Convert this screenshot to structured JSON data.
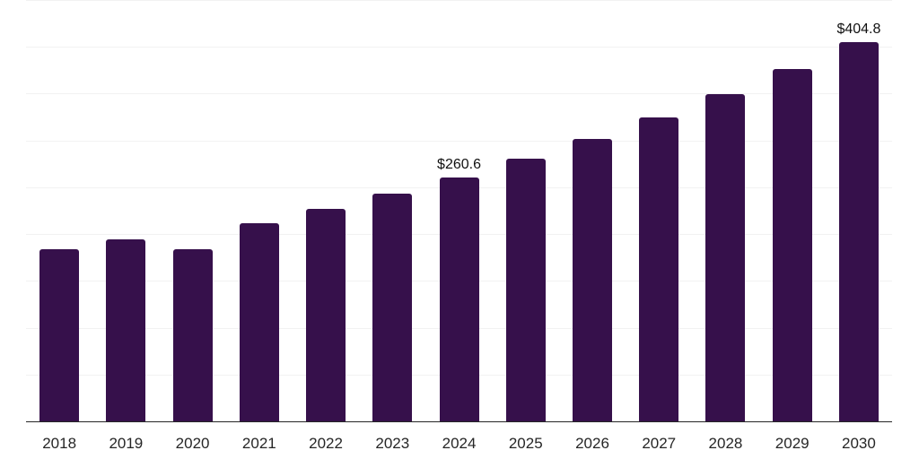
{
  "chart_data": {
    "type": "bar",
    "title": "",
    "xlabel": "",
    "ylabel": "",
    "categories": [
      "2018",
      "2019",
      "2020",
      "2021",
      "2022",
      "2023",
      "2024",
      "2025",
      "2026",
      "2027",
      "2028",
      "2029",
      "2030"
    ],
    "values": [
      183.6,
      194.1,
      184.0,
      212.0,
      227.0,
      243.2,
      260.6,
      280.4,
      301.8,
      324.8,
      349.5,
      376.2,
      404.8
    ],
    "data_labels": {
      "2024": "$260.6",
      "2030": "$404.8"
    },
    "ylim": [
      0,
      450
    ],
    "grid_step": 50,
    "grid": true,
    "legend": false,
    "colors": {
      "bar": "#36104b",
      "grid_line": "#f2f2f2",
      "axis_line": "#262626",
      "tick_label": "#262626",
      "data_label": "#111111",
      "background": "#ffffff"
    }
  }
}
